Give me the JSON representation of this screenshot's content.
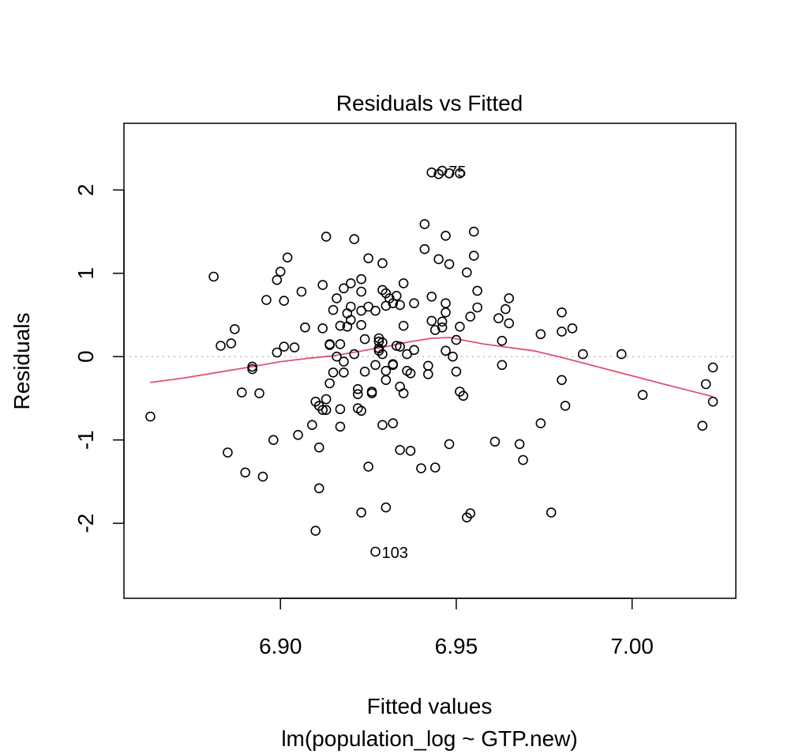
{
  "chart_data": {
    "type": "scatter",
    "title": "Residuals vs Fitted",
    "xlabel": "Fitted values",
    "subtitle": "lm(population_log ~ GTP.new)",
    "ylabel": "Residuals",
    "xlim": [
      6.8555,
      7.0295
    ],
    "ylim": [
      -2.9,
      2.8
    ],
    "xticks": [
      6.9,
      6.95,
      7.0
    ],
    "xtick_labels": [
      "6.90",
      "6.95",
      "7.00"
    ],
    "yticks": [
      -2,
      -1,
      0,
      1,
      2
    ],
    "ytick_labels": [
      "-2",
      "-1",
      "0",
      "1",
      "2"
    ],
    "reference_line_y": 0,
    "grid": false,
    "colors": {
      "points": "#000000",
      "smoother": "#DF536B",
      "reference": "#BEBEBE"
    },
    "points": [
      [
        6.863,
        -0.72
      ],
      [
        6.881,
        0.96
      ],
      [
        6.883,
        0.13
      ],
      [
        6.885,
        -1.15
      ],
      [
        6.886,
        0.16
      ],
      [
        6.887,
        0.33
      ],
      [
        6.889,
        -0.43
      ],
      [
        6.89,
        -1.39
      ],
      [
        6.892,
        -0.12
      ],
      [
        6.892,
        -0.15
      ],
      [
        6.894,
        -0.44
      ],
      [
        6.895,
        -1.44
      ],
      [
        6.896,
        0.68
      ],
      [
        6.898,
        -1.0
      ],
      [
        6.899,
        0.05
      ],
      [
        6.899,
        0.92
      ],
      [
        6.9,
        1.02
      ],
      [
        6.901,
        0.12
      ],
      [
        6.901,
        0.67
      ],
      [
        6.902,
        1.19
      ],
      [
        6.904,
        0.11
      ],
      [
        6.905,
        -0.94
      ],
      [
        6.906,
        0.78
      ],
      [
        6.907,
        0.35
      ],
      [
        6.909,
        -0.82
      ],
      [
        6.91,
        -0.54
      ],
      [
        6.91,
        -2.09
      ],
      [
        6.911,
        -0.59
      ],
      [
        6.911,
        -1.58
      ],
      [
        6.911,
        -1.09
      ],
      [
        6.912,
        0.86
      ],
      [
        6.912,
        0.34
      ],
      [
        6.912,
        -0.64
      ],
      [
        6.913,
        1.44
      ],
      [
        6.913,
        -0.51
      ],
      [
        6.913,
        -0.64
      ],
      [
        6.914,
        0.15
      ],
      [
        6.914,
        -0.32
      ],
      [
        6.914,
        0.14
      ],
      [
        6.915,
        -0.19
      ],
      [
        6.915,
        0.56
      ],
      [
        6.916,
        0.7
      ],
      [
        6.916,
        0.0
      ],
      [
        6.917,
        -0.84
      ],
      [
        6.917,
        -0.63
      ],
      [
        6.917,
        0.37
      ],
      [
        6.917,
        0.15
      ],
      [
        6.918,
        0.82
      ],
      [
        6.918,
        -0.06
      ],
      [
        6.918,
        -0.19
      ],
      [
        6.919,
        0.52
      ],
      [
        6.919,
        0.36
      ],
      [
        6.92,
        0.88
      ],
      [
        6.92,
        0.44
      ],
      [
        6.92,
        0.6
      ],
      [
        6.921,
        0.03
      ],
      [
        6.921,
        1.41
      ],
      [
        6.922,
        -0.39
      ],
      [
        6.922,
        -0.45
      ],
      [
        6.922,
        -0.62
      ],
      [
        6.923,
        0.55
      ],
      [
        6.923,
        0.38
      ],
      [
        6.923,
        -1.87
      ],
      [
        6.923,
        -0.65
      ],
      [
        6.923,
        0.78
      ],
      [
        6.923,
        0.93
      ],
      [
        6.924,
        -0.18
      ],
      [
        6.924,
        0.21
      ],
      [
        6.925,
        1.18
      ],
      [
        6.925,
        -1.32
      ],
      [
        6.925,
        0.6
      ],
      [
        6.926,
        -0.44
      ],
      [
        6.926,
        -0.42
      ],
      [
        6.927,
        0.55
      ],
      [
        6.927,
        -0.1
      ],
      [
        6.927,
        -2.34
      ],
      [
        6.928,
        0.1
      ],
      [
        6.928,
        0.07
      ],
      [
        6.928,
        0.18
      ],
      [
        6.928,
        0.22
      ],
      [
        6.929,
        0.03
      ],
      [
        6.929,
        -0.82
      ],
      [
        6.929,
        1.12
      ],
      [
        6.929,
        0.17
      ],
      [
        6.929,
        0.8
      ],
      [
        6.93,
        -0.28
      ],
      [
        6.93,
        0.61
      ],
      [
        6.93,
        -1.81
      ],
      [
        6.93,
        -0.17
      ],
      [
        6.93,
        0.76
      ],
      [
        6.931,
        0.7
      ],
      [
        6.932,
        0.64
      ],
      [
        6.932,
        -0.8
      ],
      [
        6.932,
        -0.1
      ],
      [
        6.932,
        -0.09
      ],
      [
        6.933,
        0.73
      ],
      [
        6.933,
        0.13
      ],
      [
        6.934,
        -1.12
      ],
      [
        6.934,
        -0.36
      ],
      [
        6.934,
        0.12
      ],
      [
        6.934,
        0.62
      ],
      [
        6.935,
        0.88
      ],
      [
        6.935,
        0.37
      ],
      [
        6.935,
        -0.44
      ],
      [
        6.936,
        0.03
      ],
      [
        6.936,
        -0.17
      ],
      [
        6.937,
        -1.13
      ],
      [
        6.937,
        -0.2
      ],
      [
        6.938,
        0.08
      ],
      [
        6.938,
        0.64
      ],
      [
        6.94,
        -1.34
      ],
      [
        6.941,
        1.59
      ],
      [
        6.941,
        1.29
      ],
      [
        6.942,
        -0.11
      ],
      [
        6.942,
        -0.21
      ],
      [
        6.943,
        2.21
      ],
      [
        6.943,
        0.72
      ],
      [
        6.943,
        0.43
      ],
      [
        6.944,
        0.32
      ],
      [
        6.944,
        -1.33
      ],
      [
        6.945,
        1.17
      ],
      [
        6.945,
        2.19
      ],
      [
        6.946,
        0.42
      ],
      [
        6.946,
        2.23
      ],
      [
        6.946,
        0.35
      ],
      [
        6.947,
        0.64
      ],
      [
        6.947,
        0.53
      ],
      [
        6.947,
        1.45
      ],
      [
        6.947,
        0.07
      ],
      [
        6.948,
        1.11
      ],
      [
        6.948,
        2.2
      ],
      [
        6.948,
        -1.05
      ],
      [
        6.949,
        0.0
      ],
      [
        6.95,
        -0.18
      ],
      [
        6.95,
        0.2
      ],
      [
        6.951,
        -0.42
      ],
      [
        6.951,
        2.2
      ],
      [
        6.951,
        0.36
      ],
      [
        6.952,
        -0.47
      ],
      [
        6.953,
        1.01
      ],
      [
        6.953,
        -1.93
      ],
      [
        6.954,
        0.48
      ],
      [
        6.954,
        -1.88
      ],
      [
        6.955,
        1.5
      ],
      [
        6.955,
        1.21
      ],
      [
        6.956,
        0.79
      ],
      [
        6.956,
        0.59
      ],
      [
        6.961,
        -1.02
      ],
      [
        6.962,
        0.46
      ],
      [
        6.963,
        -0.1
      ],
      [
        6.963,
        0.19
      ],
      [
        6.964,
        0.57
      ],
      [
        6.965,
        0.7
      ],
      [
        6.965,
        0.4
      ],
      [
        6.968,
        -1.05
      ],
      [
        6.969,
        -1.24
      ],
      [
        6.974,
        -0.8
      ],
      [
        6.974,
        0.27
      ],
      [
        6.977,
        -1.87
      ],
      [
        6.98,
        -0.28
      ],
      [
        6.98,
        0.3
      ],
      [
        6.98,
        0.53
      ],
      [
        6.981,
        -0.59
      ],
      [
        6.983,
        0.34
      ],
      [
        6.986,
        0.03
      ],
      [
        6.997,
        0.03
      ],
      [
        7.003,
        -0.46
      ],
      [
        7.02,
        -0.83
      ],
      [
        7.021,
        -0.33
      ],
      [
        7.023,
        -0.13
      ],
      [
        7.023,
        -0.54
      ]
    ],
    "labeled_points": [
      {
        "label": "75",
        "x": 6.946,
        "y": 2.23
      },
      {
        "label": "103",
        "x": 6.927,
        "y": -2.34
      }
    ],
    "smoother": [
      [
        6.863,
        -0.31
      ],
      [
        6.872,
        -0.26
      ],
      [
        6.882,
        -0.19
      ],
      [
        6.892,
        -0.12
      ],
      [
        6.9,
        -0.06
      ],
      [
        6.908,
        -0.02
      ],
      [
        6.915,
        0.01
      ],
      [
        6.922,
        0.06
      ],
      [
        6.93,
        0.12
      ],
      [
        6.937,
        0.18
      ],
      [
        6.943,
        0.22
      ],
      [
        6.948,
        0.23
      ],
      [
        6.953,
        0.19
      ],
      [
        6.958,
        0.15
      ],
      [
        6.965,
        0.11
      ],
      [
        6.972,
        0.07
      ],
      [
        6.98,
        -0.01
      ],
      [
        6.99,
        -0.12
      ],
      [
        7.0,
        -0.23
      ],
      [
        7.01,
        -0.34
      ],
      [
        7.023,
        -0.48
      ]
    ]
  }
}
